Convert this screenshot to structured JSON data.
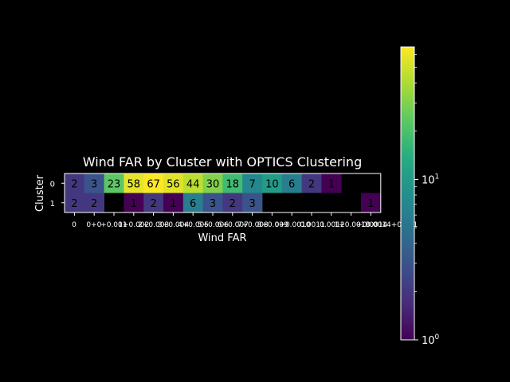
{
  "chart_data": {
    "type": "heatmap",
    "title": "Wind FAR by Cluster with OPTICS Clustering",
    "xlabel": "Wind FAR",
    "ylabel": "Cluster",
    "y_categories": [
      "0",
      "1"
    ],
    "x_tick_labels": [
      "0",
      "0+0",
      "+0.001",
      "1+0.002",
      "2+0.003",
      "3+0.004",
      "4+0.005",
      "5+0.006",
      "6+0.007",
      "7+0.008",
      "8+0.009",
      "0+0.0010",
      "0.0011",
      "0.0012",
      "1+0.0013",
      "+0.0014",
      "0.0014+0.001"
    ],
    "values": [
      [
        2,
        3,
        23,
        58,
        67,
        56,
        44,
        30,
        18,
        7,
        10,
        6,
        2,
        1,
        null,
        null
      ],
      [
        2,
        2,
        null,
        1,
        2,
        1,
        6,
        3,
        2,
        3,
        null,
        null,
        null,
        null,
        null,
        1
      ]
    ],
    "colorbar": {
      "scale": "log",
      "range": [
        1,
        67
      ],
      "tick_labels": [
        {
          "value": 1,
          "label": "10",
          "exp": "0"
        },
        {
          "value": 10,
          "label": "10",
          "exp": "1"
        }
      ]
    },
    "colormap": "viridis",
    "background": "#000000",
    "foreground": "#ffffff"
  }
}
